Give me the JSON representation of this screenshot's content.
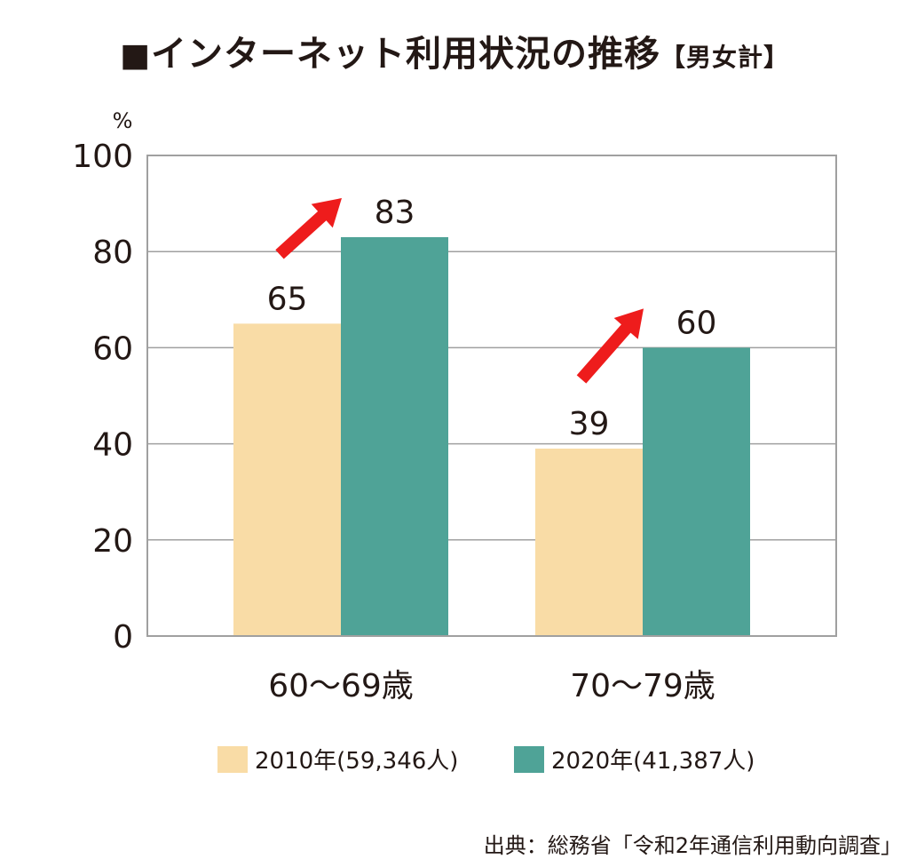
{
  "title": {
    "square": "■",
    "main": "インターネット利用状況の推移",
    "sub": "【男女計】"
  },
  "colors": {
    "series_2010": "#f9dca6",
    "series_2020": "#4fa397",
    "arrow": "#ee1c1c",
    "grid": "#a0a0a0",
    "text": "#231815"
  },
  "chart_data": {
    "type": "bar",
    "unit_label": "%",
    "categories": [
      "60〜69歳",
      "70〜79歳"
    ],
    "series": [
      {
        "name": "2010年(59,346人)",
        "values": [
          65,
          39
        ]
      },
      {
        "name": "2020年(41,387人)",
        "values": [
          83,
          60
        ]
      }
    ],
    "ylim": [
      0,
      100
    ],
    "yticks": [
      0,
      20,
      40,
      60,
      80,
      100
    ],
    "grid": true,
    "legend_position": "bottom",
    "data_labels": true,
    "annotations": [
      "red up-arrow from 2010 bar to 2020 bar in each group"
    ]
  },
  "source": "出典：総務省「令和2年通信利用動向調査」"
}
